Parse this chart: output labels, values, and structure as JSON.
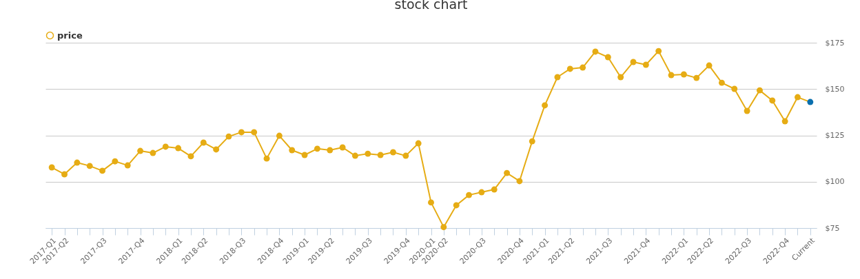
{
  "chart_data": {
    "type": "line",
    "title": "stock chart",
    "categories": [
      "2017-Q1",
      "2017-Q2",
      null,
      null,
      "2017-Q3",
      null,
      null,
      "2017-Q4",
      null,
      null,
      "2018-Q1",
      null,
      "2018-Q2",
      null,
      null,
      "2018-Q3",
      null,
      null,
      "2018-Q4",
      null,
      "2019-Q1",
      null,
      "2019-Q2",
      null,
      null,
      "2019-Q3",
      null,
      null,
      "2019-Q4",
      null,
      "2020-Q1",
      "2020-Q2",
      null,
      null,
      "2020-Q3",
      null,
      null,
      "2020-Q4",
      null,
      "2021-Q1",
      null,
      "2021-Q2",
      null,
      null,
      "2021-Q3",
      null,
      null,
      "2021-Q4",
      null,
      null,
      "2022-Q1",
      null,
      "2022-Q2",
      null,
      null,
      "2022-Q3",
      null,
      null,
      "2022-Q4",
      null,
      "Current"
    ],
    "series": [
      {
        "name": "price",
        "color": "#e6ac14",
        "colors": [
          "#e6ac14",
          "#e6ac14",
          "#e6ac14",
          "#e6ac14",
          "#e6ac14",
          "#e6ac14",
          "#e6ac14",
          "#e6ac14",
          "#e6ac14",
          "#e6ac14",
          "#e6ac14",
          "#e6ac14",
          "#e6ac14",
          "#e6ac14",
          "#e6ac14",
          "#e6ac14",
          "#e6ac14",
          "#e6ac14",
          "#e6ac14",
          "#e6ac14",
          "#e6ac14",
          "#e6ac14",
          "#e6ac14",
          "#e6ac14",
          "#e6ac14",
          "#e6ac14",
          "#e6ac14",
          "#e6ac14",
          "#e6ac14",
          "#e6ac14",
          "#e6ac14",
          "#e6ac14",
          "#e6ac14",
          "#e6ac14",
          "#e6ac14",
          "#e6ac14",
          "#e6ac14",
          "#e6ac14",
          "#e6ac14",
          "#e6ac14",
          "#e6ac14",
          "#e6ac14",
          "#e6ac14",
          "#e6ac14",
          "#e6ac14",
          "#e6ac14",
          "#e6ac14",
          "#e6ac14",
          "#e6ac14",
          "#e6ac14",
          "#e6ac14",
          "#e6ac14",
          "#e6ac14",
          "#e6ac14",
          "#e6ac14",
          "#e6ac14",
          "#e6ac14",
          "#e6ac14",
          "#e6ac14",
          "#e6ac14",
          "#0a6fae"
        ],
        "values": [
          107.7,
          104,
          110.3,
          108.5,
          105.9,
          111,
          108.8,
          116.6,
          115.5,
          118.9,
          118.1,
          113.7,
          121.1,
          117.4,
          124.4,
          126.7,
          126.7,
          112.5,
          124.8,
          117,
          114.4,
          117.8,
          117,
          118.5,
          114,
          115.1,
          114.4,
          115.9,
          114,
          120.7,
          88.8,
          75.5,
          87.3,
          92.8,
          94.3,
          95.8,
          104.7,
          100.3,
          121.8,
          141.2,
          156.4,
          160.9,
          161.6,
          170.2,
          167.2,
          156.4,
          164.6,
          163.1,
          170.5,
          157.5,
          157.9,
          156,
          162.7,
          153.4,
          150.1,
          138.2,
          149.3,
          143.8,
          132.6,
          145.6,
          143
        ]
      }
    ],
    "ylim": [
      75,
      175
    ],
    "yticks": [
      {
        "value": 75,
        "label": "$75"
      },
      {
        "value": 100,
        "label": "$100"
      },
      {
        "value": 125,
        "label": "$125"
      },
      {
        "value": 150,
        "label": "$150"
      },
      {
        "value": 175,
        "label": "$175"
      }
    ],
    "grid": "y",
    "legend": "top",
    "marker": "circle",
    "line_style": "solid"
  }
}
